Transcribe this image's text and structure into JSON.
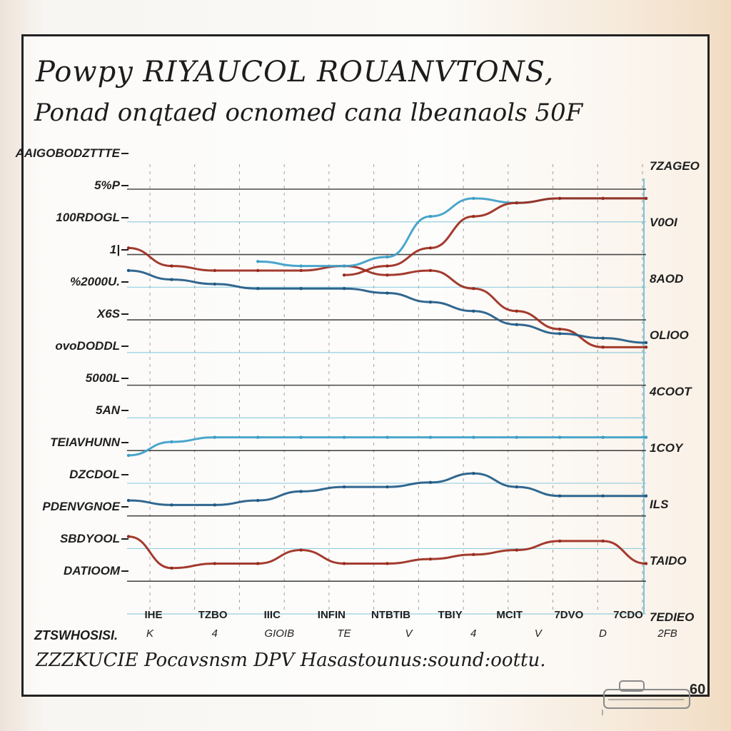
{
  "title": "Powpy RIYAUCOL ROUANVTONS,",
  "subtitle": "Ponad onqtaed ocnomed cana lbeanaols 50F",
  "footer": "ZZZKUCIE Pocavsnsm DPV Hasastounus:sound:oottu.",
  "footer_left": "ZTSWHOSISI.",
  "stamp_text": "60",
  "colors": {
    "ink": "#1f1f1f",
    "red": "#9b2a1c",
    "dark_blue": "#1f5a86",
    "light_blue": "#3b9ec7",
    "grid": "#2a2a2a",
    "grid_light": "#7cc3da"
  },
  "chart_data": {
    "type": "line",
    "left_labels": [
      "AAIGOBODZTTTE",
      "5%P",
      "100RDOGL",
      "1|",
      "%2000U.",
      "X6S",
      "ovoDODDL",
      "5000L",
      "5AN",
      "TEIAVHUNN",
      "DZCDOL",
      "PDENVGNOE",
      "SBDYOOL",
      "DATIOOM"
    ],
    "right_labels": [
      "7ZAGEO",
      "V0OI",
      "8AOD",
      "OLIOO",
      "4COOT",
      "1COY",
      "ILS",
      "TAIDO",
      "7EDIEO"
    ],
    "x_tick_labels": [
      "IHE",
      "TZBO",
      "IIIC",
      "INFIN",
      "NTBTIB",
      "TBIY",
      "MCIT",
      "7DVO",
      "7CDO"
    ],
    "x_sub_labels": [
      "K",
      "4",
      "GIOIB",
      "TE",
      "V",
      "4",
      "V",
      "D",
      "2FB"
    ],
    "x": [
      0,
      1,
      2,
      3,
      4,
      5,
      6,
      7,
      8,
      9,
      10,
      11,
      12
    ],
    "series": [
      {
        "color": "red",
        "values": [
          88,
          84,
          83,
          83,
          83,
          84,
          82,
          83,
          79,
          74,
          70,
          66,
          66
        ]
      },
      {
        "color": "dark_blue",
        "values": [
          83,
          81,
          80,
          79,
          79,
          79,
          78,
          76,
          74,
          71,
          69,
          68,
          67
        ]
      },
      {
        "color": "light_blue",
        "values": [
          null,
          null,
          null,
          85,
          84,
          84,
          86,
          95,
          99,
          98,
          99,
          99,
          99
        ]
      },
      {
        "color": "red",
        "values": [
          null,
          null,
          null,
          null,
          null,
          82,
          84,
          88,
          95,
          98,
          99,
          99,
          99
        ]
      },
      {
        "color": "light_blue",
        "values": [
          42,
          45,
          46,
          46,
          46,
          46,
          46,
          46,
          46,
          46,
          46,
          46,
          46
        ]
      },
      {
        "color": "dark_blue",
        "values": [
          32,
          31,
          31,
          32,
          34,
          35,
          35,
          36,
          38,
          35,
          33,
          33,
          33
        ]
      },
      {
        "color": "red",
        "values": [
          24,
          17,
          18,
          18,
          21,
          18,
          18,
          19,
          20,
          21,
          23,
          23,
          18
        ]
      }
    ],
    "ylim": [
      10,
      105
    ],
    "grid": true
  }
}
